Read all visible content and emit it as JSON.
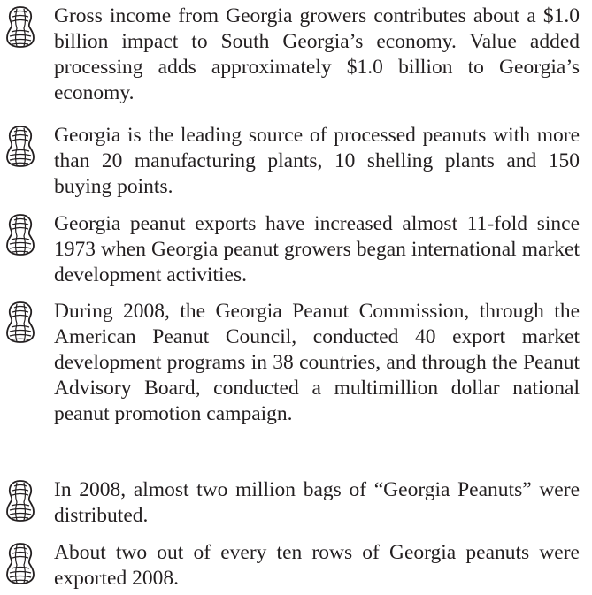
{
  "items": [
    "Gross income from Georgia growers contributes about a $1.0 billion impact to South Georgia’s economy. Value added processing adds approximately $1.0 billion to Georgia’s economy.",
    "Georgia is the leading source of processed peanuts with more than 20 manufacturing plants, 10 shelling plants and 150 buying points.",
    "Georgia peanut exports have increased almost 11-fold since 1973 when Georgia peanut growers began international market development activities.",
    "During 2008, the Georgia Peanut Commission, through the American Peanut Council, conducted 40 export market development programs in 38 countries, and through the Peanut Advisory Board, conducted a multimillion dollar national peanut promotion campaign.",
    "In 2008, almost two million bags of  “Georgia Peanuts” were distributed.",
    "About two out of every ten rows of Georgia peanuts were exported 2008."
  ]
}
